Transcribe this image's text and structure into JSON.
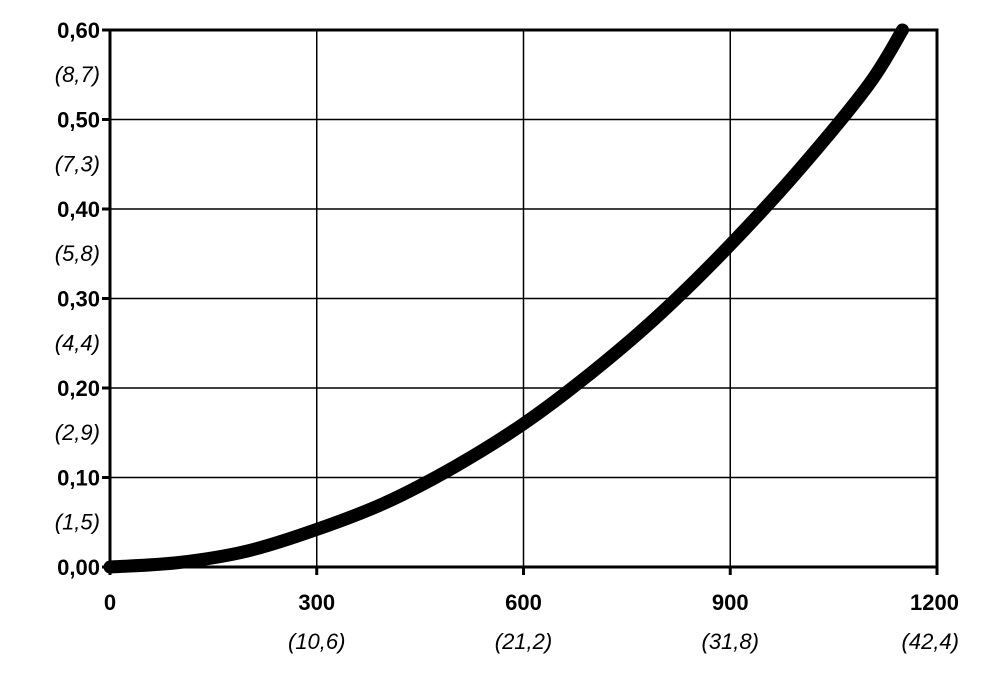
{
  "chart_data": {
    "type": "line",
    "title": "",
    "xlabel": "",
    "ylabel": "",
    "xlim": [
      0,
      1200
    ],
    "ylim": [
      0,
      0.6
    ],
    "grid": true,
    "x_ticks": [
      {
        "value": 0,
        "label": "0",
        "sublabel": ""
      },
      {
        "value": 300,
        "label": "300",
        "sublabel": "(10,6)"
      },
      {
        "value": 600,
        "label": "600",
        "sublabel": "(21,2)"
      },
      {
        "value": 900,
        "label": "900",
        "sublabel": "(31,8)"
      },
      {
        "value": 1200,
        "label": "1200",
        "sublabel": "(42,4)"
      }
    ],
    "y_ticks": [
      {
        "value": 0.0,
        "label": "0,00",
        "sublabel": ""
      },
      {
        "value": 0.1,
        "label": "0,10",
        "sublabel": "(1,5)"
      },
      {
        "value": 0.2,
        "label": "0,20",
        "sublabel": "(2,9)"
      },
      {
        "value": 0.3,
        "label": "0,30",
        "sublabel": "(4,4)"
      },
      {
        "value": 0.4,
        "label": "0,40",
        "sublabel": "(5,8)"
      },
      {
        "value": 0.5,
        "label": "0,50",
        "sublabel": "(7,3)"
      },
      {
        "value": 0.6,
        "label": "0,60",
        "sublabel": "(8,7)"
      }
    ],
    "series": [
      {
        "color": "#000000",
        "x": [
          0,
          100,
          200,
          300,
          400,
          500,
          600,
          700,
          800,
          900,
          1000,
          1100,
          1150
        ],
        "y": [
          0.0,
          0.005,
          0.018,
          0.042,
          0.072,
          0.112,
          0.16,
          0.218,
          0.284,
          0.36,
          0.444,
          0.538,
          0.6
        ]
      }
    ]
  }
}
